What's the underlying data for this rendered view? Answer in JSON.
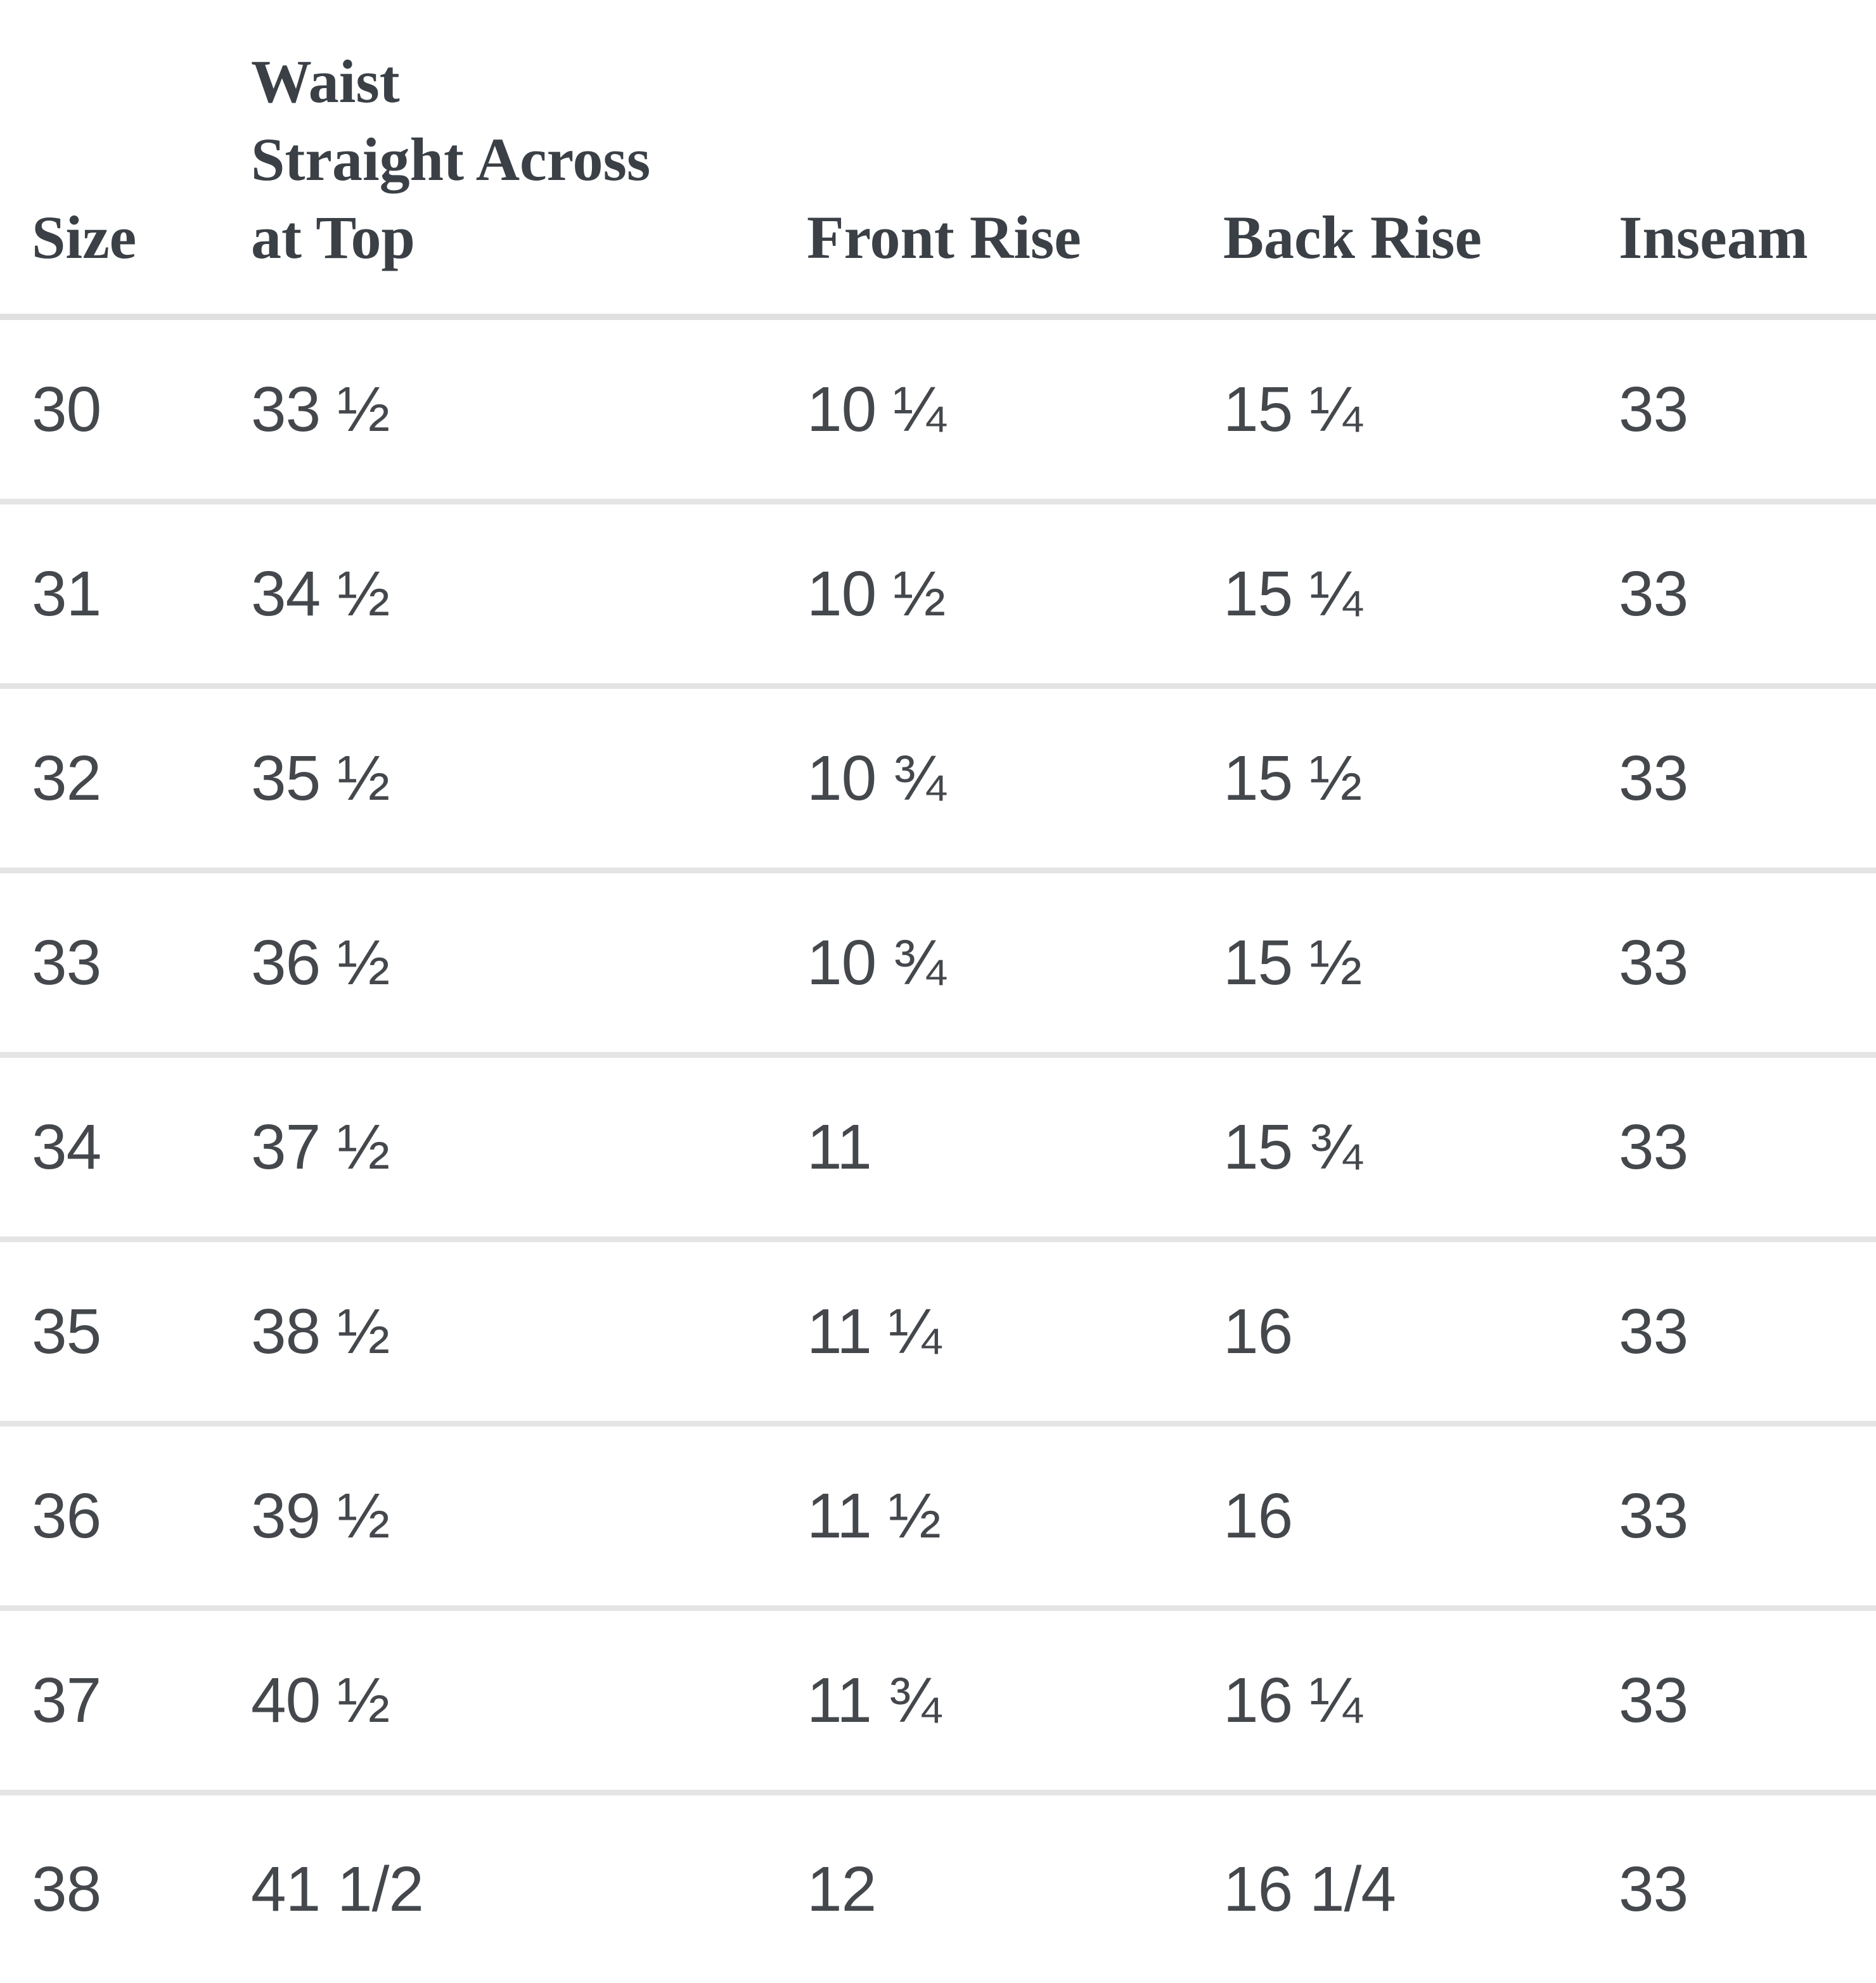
{
  "table": {
    "title": "pants-size-chart",
    "header": [
      "Size",
      "Waist\nStraight Across\nat Top",
      "Front Rise",
      "Back Rise",
      "Inseam"
    ],
    "rows": [
      [
        "30",
        "33 ½",
        "10 ¼",
        "15 ¼",
        "33"
      ],
      [
        "31",
        "34 ½",
        "10 ½",
        "15 ¼",
        "33"
      ],
      [
        "32",
        "35 ½",
        "10 ¾",
        "15 ½",
        "33"
      ],
      [
        "33",
        "36 ½",
        "10 ¾",
        "15 ½",
        "33"
      ],
      [
        "34",
        "37 ½",
        "11",
        "15 ¾",
        "33"
      ],
      [
        "35",
        "38 ½",
        "11 ¼",
        "16",
        "33"
      ],
      [
        "36",
        "39 ½",
        "11 ½",
        "16",
        "33"
      ],
      [
        "37",
        "40 ½",
        "11 ¾",
        "16 ¼",
        "33"
      ],
      [
        "38",
        "41 1/2",
        "12",
        "16 1/4",
        "33"
      ]
    ],
    "colors": {
      "background": "#ffffff",
      "header_text": "#3a4046",
      "body_text": "#44484c",
      "header_divider": "#e0e0e0",
      "row_divider": "#e4e4e4"
    }
  }
}
